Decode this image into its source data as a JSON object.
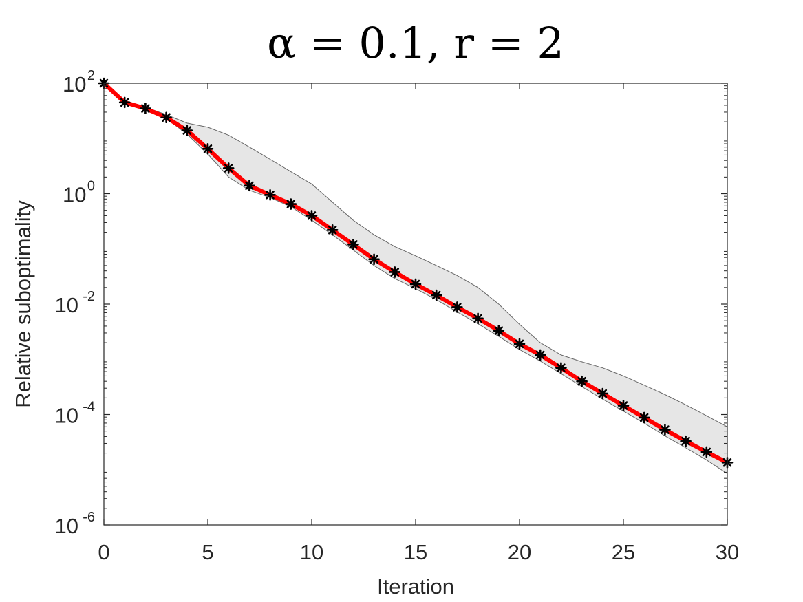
{
  "chart_data": {
    "type": "line",
    "title": "α = 0.1, r = 2",
    "xlabel": "Iteration",
    "ylabel": "Relative suboptimality",
    "xlim": [
      0,
      30
    ],
    "ylim": [
      1e-06,
      100
    ],
    "yscale": "log",
    "xticks": [
      "0",
      "5",
      "10",
      "15",
      "20",
      "25",
      "30"
    ],
    "yticks": [
      {
        "base": "10",
        "exp": "2",
        "value": 100
      },
      {
        "base": "10",
        "exp": "0",
        "value": 1
      },
      {
        "base": "10",
        "exp": "-2",
        "value": 0.01
      },
      {
        "base": "10",
        "exp": "-4",
        "value": 0.0001
      },
      {
        "base": "10",
        "exp": "-6",
        "value": 1e-06
      }
    ],
    "grid": false,
    "x": [
      0,
      1,
      2,
      3,
      4,
      5,
      6,
      7,
      8,
      9,
      10,
      11,
      12,
      13,
      14,
      15,
      16,
      17,
      18,
      19,
      20,
      21,
      22,
      23,
      24,
      25,
      26,
      27,
      28,
      29,
      30
    ],
    "series": [
      {
        "type": "line-markers",
        "color": "#ff0000",
        "marker_color": "#000000",
        "values": [
          100,
          45,
          35,
          24,
          14,
          6.5,
          2.9,
          1.4,
          0.95,
          0.65,
          0.4,
          0.22,
          0.12,
          0.065,
          0.038,
          0.023,
          0.0145,
          0.0088,
          0.0055,
          0.0033,
          0.0019,
          0.0012,
          0.0007,
          0.0004,
          0.00024,
          0.000145,
          8.8e-05,
          5.3e-05,
          3.3e-05,
          2.1e-05,
          1.35e-05
        ]
      }
    ],
    "band": {
      "color": "#e6e6e6",
      "edge_color": "#666666",
      "upper": [
        100,
        47,
        37,
        27,
        19,
        16,
        11.5,
        7,
        4.2,
        2.5,
        1.5,
        0.7,
        0.33,
        0.18,
        0.11,
        0.075,
        0.05,
        0.033,
        0.02,
        0.01,
        0.0043,
        0.002,
        0.0012,
        0.0009,
        0.0007,
        0.0005,
        0.00034,
        0.00023,
        0.00015,
        9.5e-05,
        6e-05
      ],
      "lower": [
        100,
        44,
        34,
        23,
        12,
        5.2,
        2.0,
        1.15,
        0.85,
        0.58,
        0.33,
        0.18,
        0.095,
        0.05,
        0.029,
        0.019,
        0.012,
        0.0072,
        0.0044,
        0.0026,
        0.0015,
        0.00093,
        0.00055,
        0.00032,
        0.00019,
        0.000115,
        7e-05,
        4.1e-05,
        2.5e-05,
        1.5e-05,
        8.5e-06
      ]
    }
  }
}
